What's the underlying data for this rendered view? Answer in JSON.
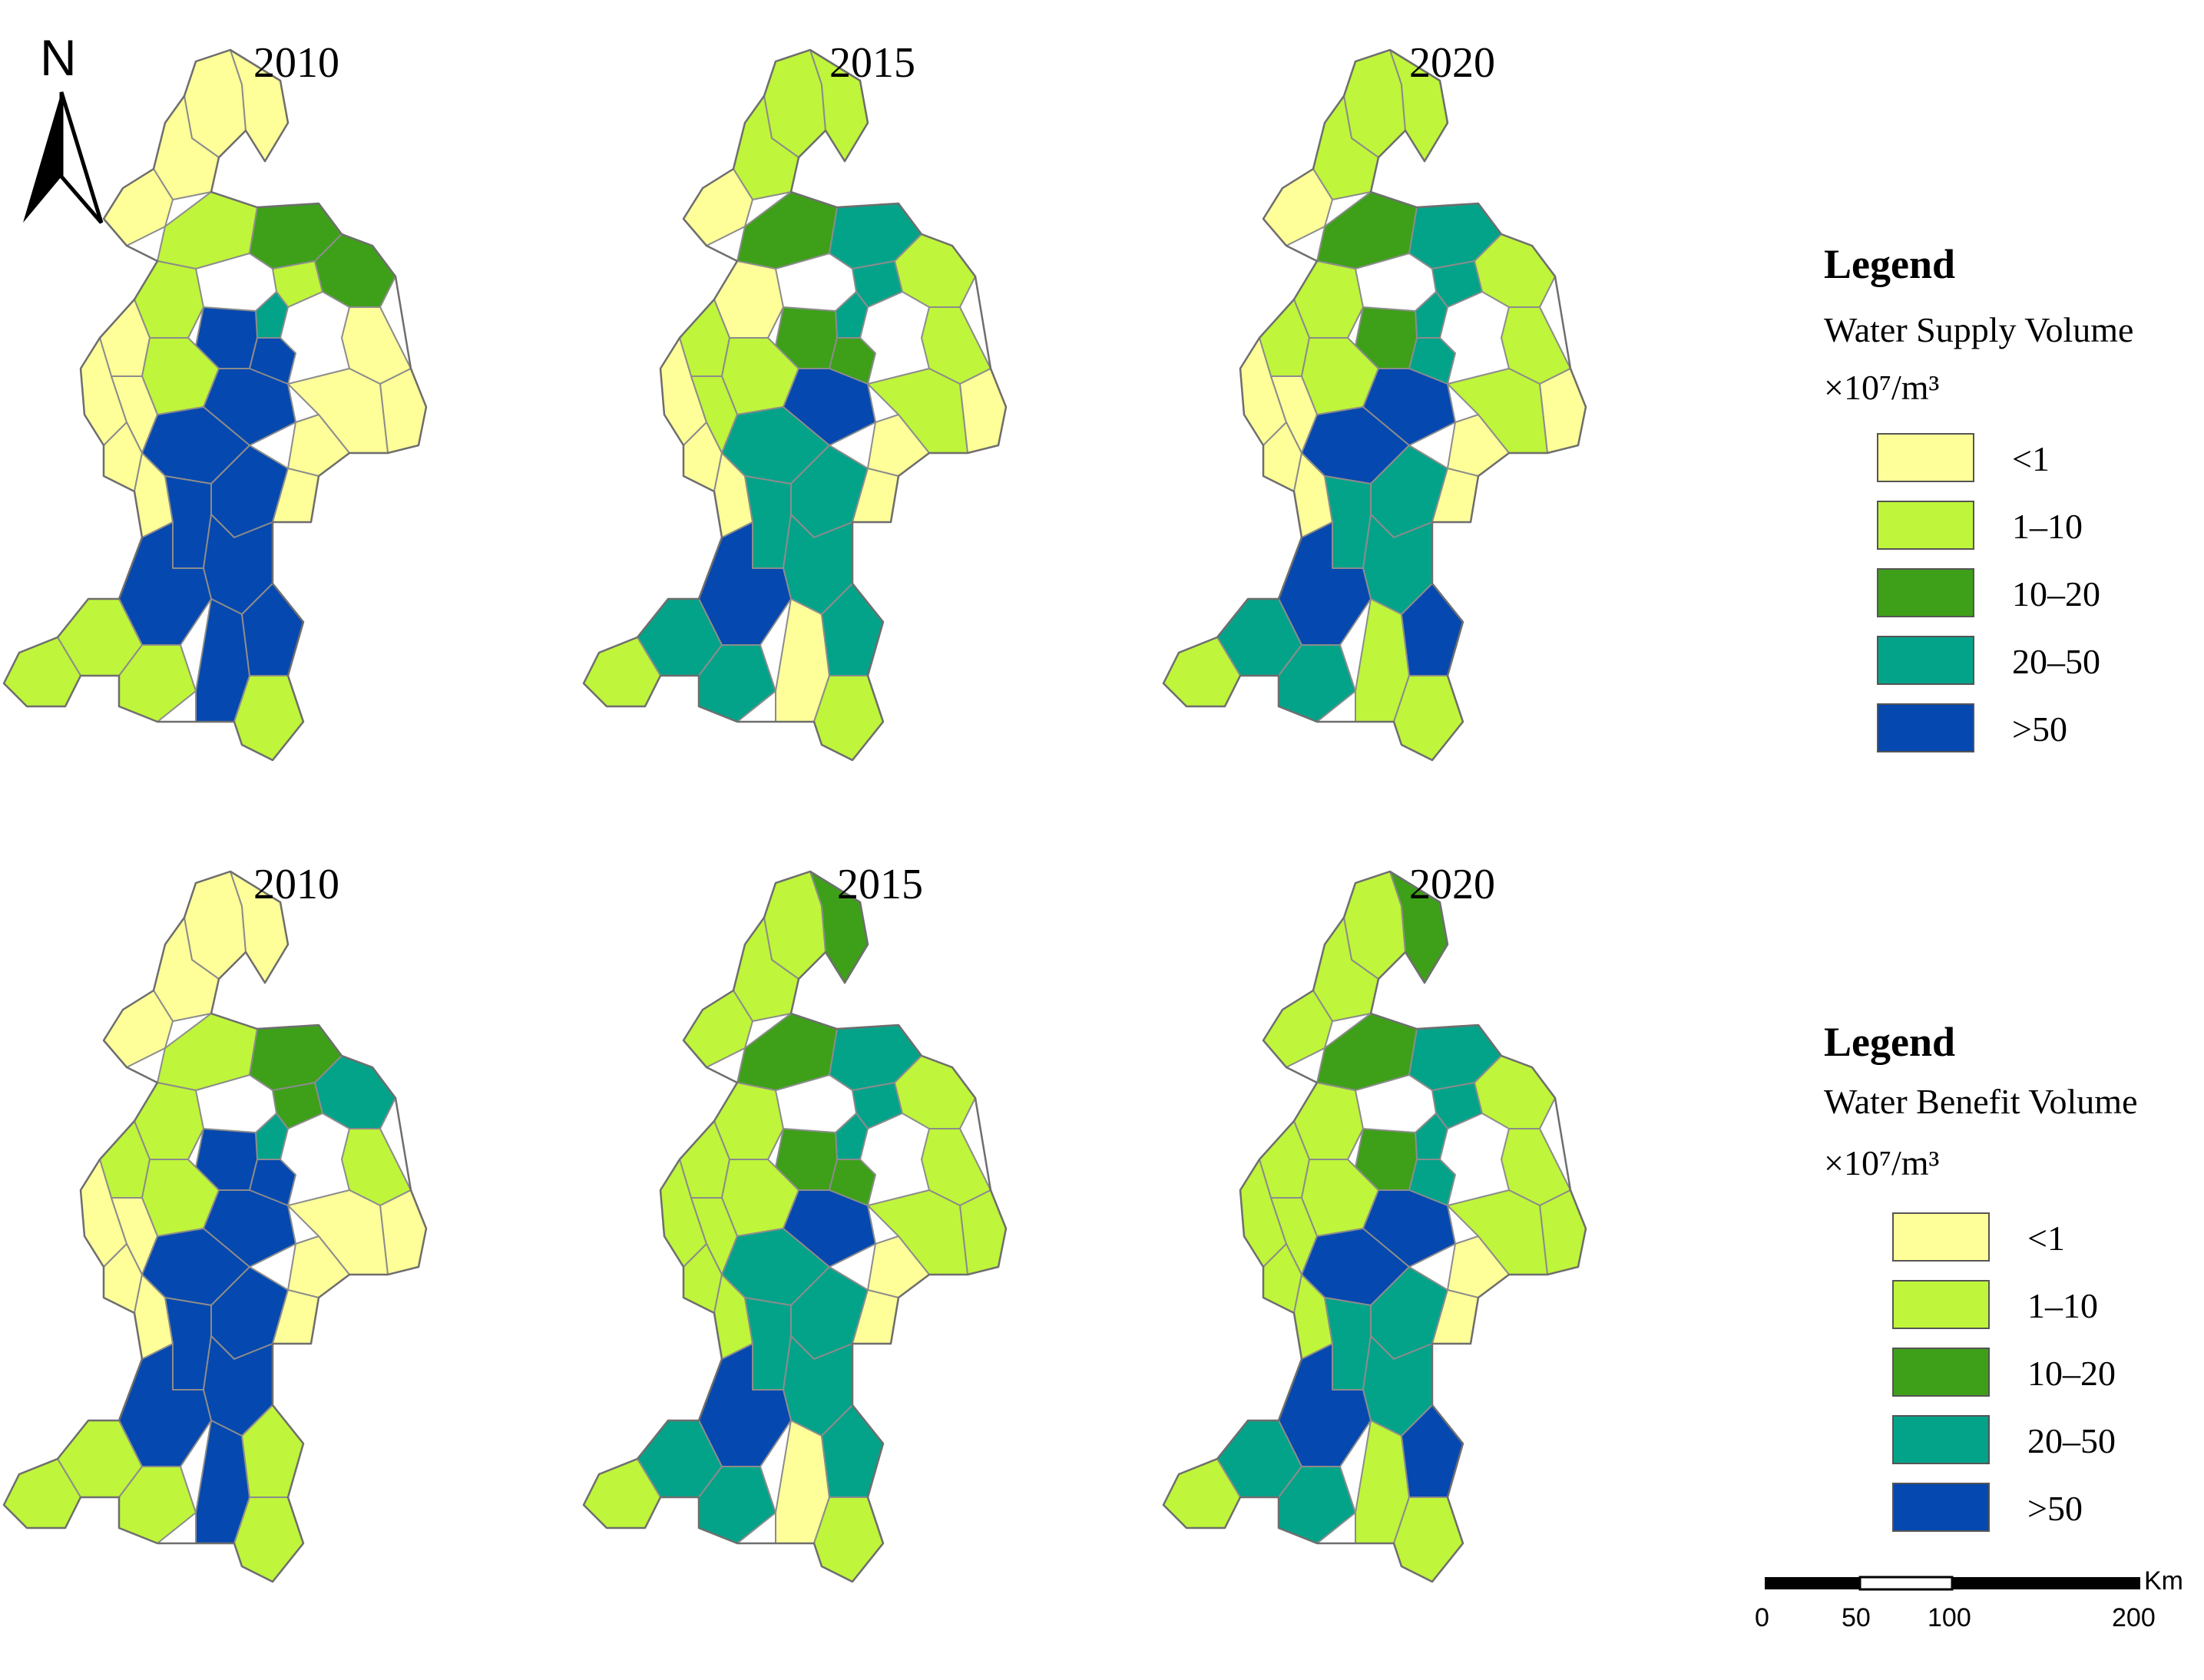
{
  "north_arrow": {
    "label": "N"
  },
  "colors": {
    "lt1": "#FFFF99",
    "1to10": "#BFF53A",
    "10to20": "#3DA018",
    "20to50": "#03A38A",
    "gt50": "#0548AF",
    "outline": "#8C8C8C"
  },
  "panels": [
    {
      "row": "supply",
      "year": "2010",
      "scheme": [
        "lt1",
        "lt1",
        "lt1",
        "lt1",
        "1to10",
        "10to20",
        "1to10",
        "20to50",
        "10to20",
        "lt1",
        "lt1",
        "1to10",
        "gt50",
        "gt50",
        "lt1",
        "lt1",
        "1to10",
        "gt50",
        "lt1",
        "lt1",
        "lt1",
        "gt50",
        "gt50",
        "lt1",
        "lt1",
        "lt1",
        "gt50",
        "gt50",
        "gt50",
        "1to10",
        "1to10",
        "gt50",
        "gt50",
        "1to10",
        "1to10"
      ]
    },
    {
      "row": "supply",
      "year": "2015",
      "scheme": [
        "1to10",
        "1to10",
        "1to10",
        "lt1",
        "10to20",
        "20to50",
        "20to50",
        "20to50",
        "1to10",
        "1to10",
        "lt1",
        "lt1",
        "10to20",
        "10to20",
        "1to10",
        "1to10",
        "1to10",
        "gt50",
        "lt1",
        "lt1",
        "1to10",
        "20to50",
        "20to50",
        "lt1",
        "lt1",
        "lt1",
        "20to50",
        "20to50",
        "gt50",
        "20to50",
        "20to50",
        "lt1",
        "20to50",
        "1to10",
        "1to10"
      ]
    },
    {
      "row": "supply",
      "year": "2020",
      "scheme": [
        "1to10",
        "1to10",
        "1to10",
        "lt1",
        "10to20",
        "20to50",
        "20to50",
        "20to50",
        "1to10",
        "1to10",
        "lt1",
        "1to10",
        "10to20",
        "20to50",
        "1to10",
        "1to10",
        "1to10",
        "gt50",
        "lt1",
        "lt1",
        "lt1",
        "gt50",
        "20to50",
        "lt1",
        "lt1",
        "lt1",
        "20to50",
        "20to50",
        "gt50",
        "20to50",
        "20to50",
        "1to10",
        "gt50",
        "1to10",
        "1to10"
      ]
    },
    {
      "row": "benefit",
      "year": "2010",
      "scheme": [
        "lt1",
        "lt1",
        "lt1",
        "lt1",
        "1to10",
        "10to20",
        "10to20",
        "20to50",
        "20to50",
        "1to10",
        "lt1",
        "1to10",
        "gt50",
        "gt50",
        "lt1",
        "1to10",
        "1to10",
        "gt50",
        "lt1",
        "lt1",
        "lt1",
        "gt50",
        "gt50",
        "lt1",
        "lt1",
        "lt1",
        "gt50",
        "gt50",
        "gt50",
        "1to10",
        "1to10",
        "gt50",
        "1to10",
        "1to10",
        "1to10"
      ]
    },
    {
      "row": "benefit",
      "year": "2015",
      "scheme": [
        "1to10",
        "10to20",
        "1to10",
        "1to10",
        "10to20",
        "20to50",
        "20to50",
        "20to50",
        "1to10",
        "1to10",
        "1to10",
        "1to10",
        "10to20",
        "10to20",
        "1to10",
        "1to10",
        "1to10",
        "gt50",
        "lt1",
        "1to10",
        "1to10",
        "20to50",
        "20to50",
        "lt1",
        "1to10",
        "1to10",
        "20to50",
        "20to50",
        "gt50",
        "20to50",
        "20to50",
        "lt1",
        "20to50",
        "1to10",
        "1to10"
      ]
    },
    {
      "row": "benefit",
      "year": "2020",
      "scheme": [
        "1to10",
        "10to20",
        "1to10",
        "1to10",
        "10to20",
        "20to50",
        "20to50",
        "20to50",
        "1to10",
        "1to10",
        "1to10",
        "1to10",
        "10to20",
        "20to50",
        "1to10",
        "1to10",
        "1to10",
        "gt50",
        "lt1",
        "1to10",
        "1to10",
        "gt50",
        "20to50",
        "lt1",
        "1to10",
        "1to10",
        "20to50",
        "20to50",
        "gt50",
        "20to50",
        "20to50",
        "1to10",
        "gt50",
        "1to10",
        "1to10"
      ]
    }
  ],
  "legends": [
    {
      "title": "Legend",
      "subtitle": "Water Supply Volume",
      "unit": "×10⁷/m³",
      "classes": [
        {
          "key": "lt1",
          "label": "<1"
        },
        {
          "key": "1to10",
          "label": "1–10"
        },
        {
          "key": "10to20",
          "label": "10–20"
        },
        {
          "key": "20to50",
          "label": "20–50"
        },
        {
          "key": "gt50",
          "label": ">50"
        }
      ]
    },
    {
      "title": "Legend",
      "subtitle": "Water Benefit Volume",
      "unit": "×10⁷/m³",
      "classes": [
        {
          "key": "lt1",
          "label": "<1"
        },
        {
          "key": "1to10",
          "label": "1–10"
        },
        {
          "key": "10to20",
          "label": "10–20"
        },
        {
          "key": "20to50",
          "label": "20–50"
        },
        {
          "key": "gt50",
          "label": ">50"
        }
      ]
    }
  ],
  "scale_bar": {
    "unit": "Km",
    "ticks": [
      "0",
      "50",
      "100",
      "200"
    ]
  }
}
